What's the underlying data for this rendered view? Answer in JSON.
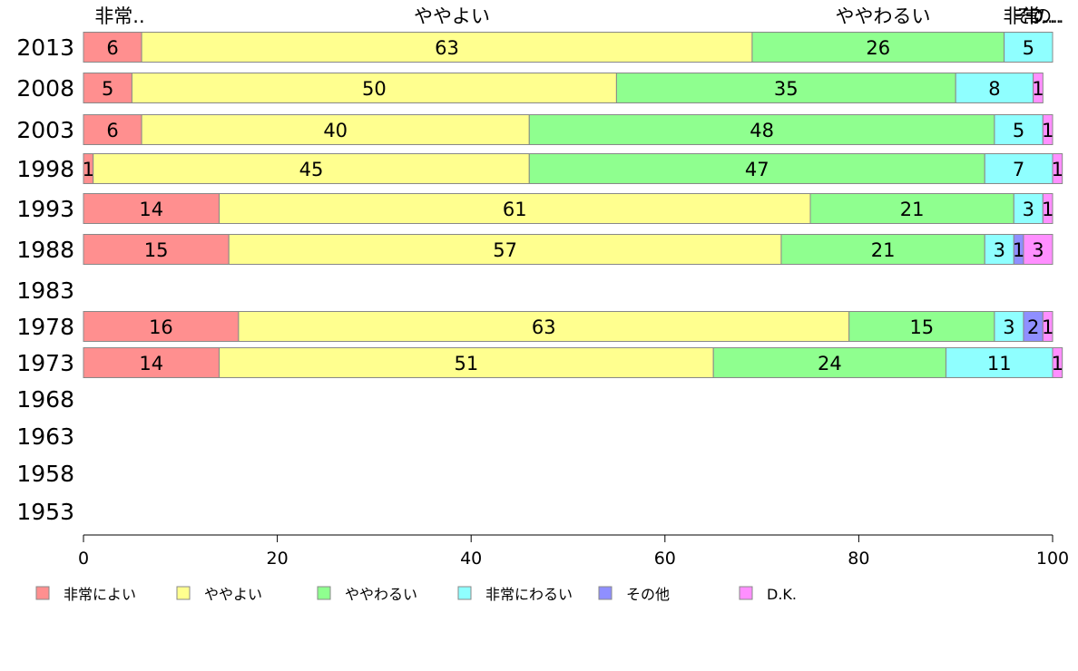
{
  "chart_data": {
    "type": "bar",
    "orientation": "horizontal",
    "stacked": true,
    "categories": [
      "2013",
      "2008",
      "2003",
      "1998",
      "1993",
      "1988",
      "1983",
      "1978",
      "1973",
      "1968",
      "1963",
      "1958",
      "1953"
    ],
    "series": [
      {
        "name": "非常によい",
        "color": "#ff8f8f",
        "values": [
          6,
          5,
          6,
          1,
          14,
          15,
          null,
          16,
          14,
          null,
          null,
          null,
          null
        ]
      },
      {
        "name": "ややよい",
        "color": "#ffff8f",
        "values": [
          63,
          50,
          40,
          45,
          61,
          57,
          null,
          63,
          51,
          null,
          null,
          null,
          null
        ]
      },
      {
        "name": "ややわるい",
        "color": "#8fff8f",
        "values": [
          26,
          35,
          48,
          47,
          21,
          21,
          null,
          15,
          24,
          null,
          null,
          null,
          null
        ]
      },
      {
        "name": "非常にわるい",
        "color": "#8fffff",
        "values": [
          5,
          8,
          5,
          7,
          3,
          3,
          null,
          3,
          11,
          null,
          null,
          null,
          null
        ]
      },
      {
        "name": "その他",
        "color": "#8f8fff",
        "values": [
          0,
          0,
          0,
          0,
          0,
          1,
          null,
          2,
          0,
          null,
          null,
          null,
          null
        ]
      },
      {
        "name": "D.K.",
        "color": "#ff8fff",
        "values": [
          0,
          1,
          1,
          1,
          1,
          3,
          null,
          1,
          1,
          null,
          null,
          null,
          null
        ]
      }
    ],
    "top_labels": [
      "非常..",
      "ややよい",
      "ややわるい",
      "非常..",
      "その..",
      "D..."
    ],
    "x_ticks": [
      0,
      20,
      40,
      60,
      80,
      100
    ],
    "xlim": [
      0,
      100
    ],
    "title": "",
    "xlabel": "",
    "ylabel": "",
    "legend_position": "bottom",
    "grid": false
  }
}
